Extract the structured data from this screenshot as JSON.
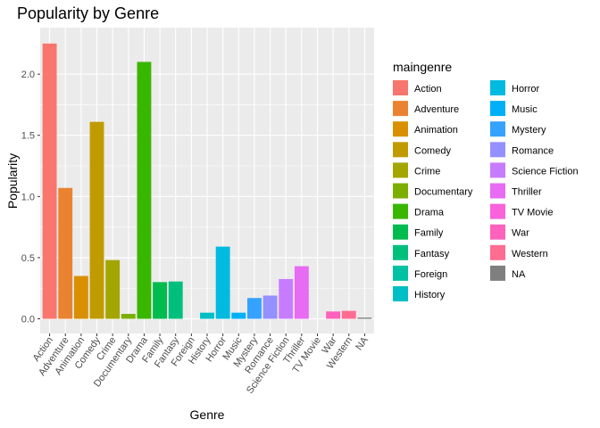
{
  "chart_data": {
    "type": "bar",
    "title": "Popularity by Genre",
    "xlabel": "Genre",
    "ylabel": "Popularity",
    "ylim": [
      -0.12,
      2.38
    ],
    "yticks": [
      "0.0",
      "0.5",
      "1.0",
      "1.5",
      "2.0"
    ],
    "ytick_values": [
      0,
      0.5,
      1.0,
      1.5,
      2.0
    ],
    "grid": true,
    "legend_position": "right",
    "legend_title": "maingenre",
    "categories": [
      "Action",
      "Adventure",
      "Animation",
      "Comedy",
      "Crime",
      "Documentary",
      "Drama",
      "Family",
      "Fantasy",
      "Foreign",
      "History",
      "Horror",
      "Music",
      "Mystery",
      "Romance",
      "Science Fiction",
      "Thriller",
      "TV Movie",
      "War",
      "Western",
      "NA"
    ],
    "values": [
      2.25,
      1.07,
      0.35,
      1.61,
      0.48,
      0.04,
      2.1,
      0.3,
      0.305,
      0,
      0.05,
      0.59,
      0.05,
      0.17,
      0.19,
      0.325,
      0.43,
      0,
      0.06,
      0.065,
      0.01
    ],
    "legend": [
      "Action",
      "Adventure",
      "Animation",
      "Comedy",
      "Crime",
      "Documentary",
      "Drama",
      "Family",
      "Fantasy",
      "Foreign",
      "History",
      "Horror",
      "Music",
      "Mystery",
      "Romance",
      "Science Fiction",
      "Thriller",
      "TV Movie",
      "War",
      "Western",
      "NA"
    ],
    "colors": [
      "#F8766D",
      "#EA8331",
      "#D89000",
      "#C09B00",
      "#A3A500",
      "#7CAE00",
      "#39B600",
      "#00BB4E",
      "#00BF7D",
      "#00C1A3",
      "#00BFC4",
      "#00BAE0",
      "#00B0F6",
      "#35A2FF",
      "#9590FF",
      "#C77CFF",
      "#E76BF3",
      "#FA62DB",
      "#FF62BC",
      "#FF6C91",
      "#7F7F7F"
    ]
  }
}
